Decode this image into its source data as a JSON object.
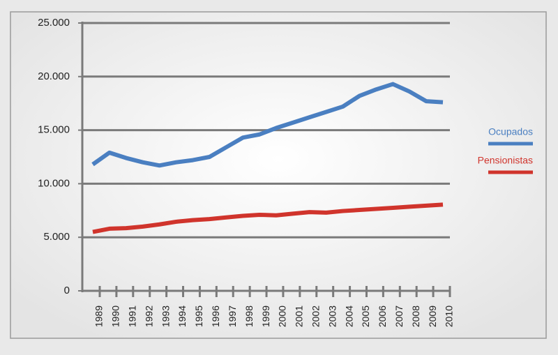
{
  "chart_data": {
    "type": "line",
    "categories": [
      "1989",
      "1990",
      "1991",
      "1992",
      "1993",
      "1994",
      "1995",
      "1996",
      "1997",
      "1998",
      "1999",
      "2000",
      "2001",
      "2002",
      "2003",
      "2004",
      "2005",
      "2006",
      "2007",
      "2008",
      "2009",
      "2010"
    ],
    "series": [
      {
        "name": "Ocupados",
        "color": "#4a7fc1",
        "values": [
          11800,
          12900,
          12400,
          12000,
          11700,
          12000,
          12200,
          12500,
          13400,
          14300,
          14600,
          15200,
          15700,
          16200,
          16700,
          17200,
          18200,
          18800,
          19300,
          18600,
          17700,
          17600
        ]
      },
      {
        "name": "Pensionistas",
        "color": "#d0342c",
        "values": [
          5500,
          5800,
          5850,
          6000,
          6200,
          6450,
          6600,
          6700,
          6850,
          7000,
          7100,
          7050,
          7200,
          7350,
          7300,
          7450,
          7550,
          7650,
          7750,
          7850,
          7950,
          8050
        ]
      }
    ],
    "ylim": [
      0,
      25000
    ],
    "yticks": [
      0,
      {
        "value": 5000,
        "label": "5.000"
      },
      {
        "value": 10000,
        "label": "10.000"
      },
      {
        "value": 15000,
        "label": "15.000"
      },
      {
        "value": 20000,
        "label": "20.000"
      },
      {
        "value": 25000,
        "label": "25.000"
      }
    ],
    "grid": true,
    "legend": "right"
  }
}
